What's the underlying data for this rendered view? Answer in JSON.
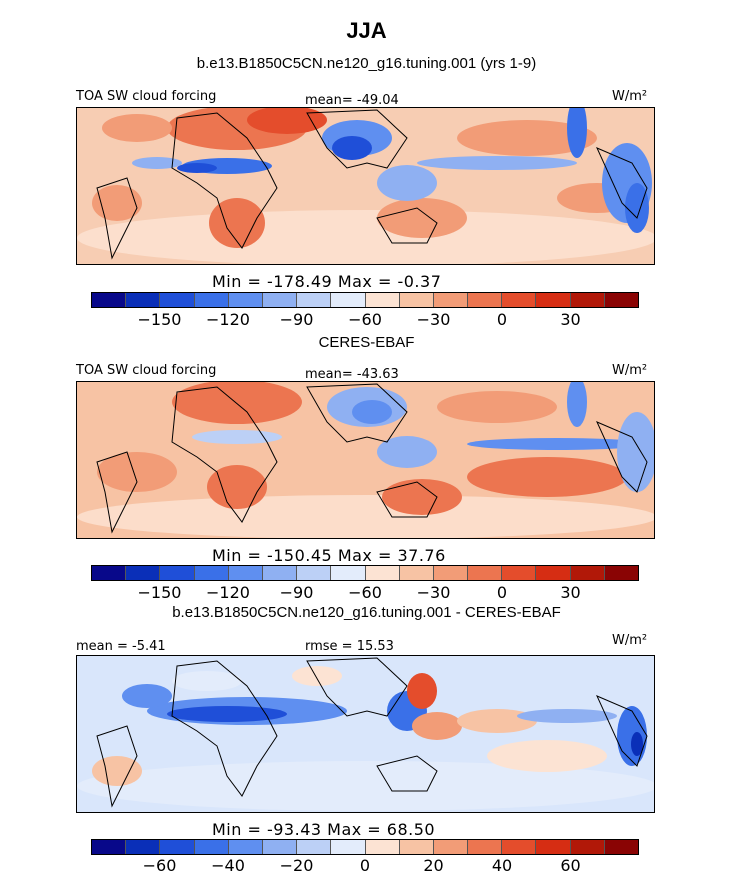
{
  "title": "JJA",
  "chart_data": [
    {
      "type": "heatmap",
      "panel_title": "b.e13.B1850C5CN.ne120_g16.tuning.001 (yrs 1-9)",
      "variable_label": "TOA SW cloud forcing",
      "mean_text": "mean= -49.04",
      "units": "W/m²",
      "min_max_text": "Min = -178.49 Max = -0.37",
      "min": -178.49,
      "max": -0.37,
      "mean": -49.04,
      "colorbar_ticks": [
        "-150",
        "-120",
        "-90",
        "-60",
        "-30",
        "0",
        "30"
      ],
      "colorbar_levels": [
        -165,
        -150,
        -135,
        -120,
        -105,
        -90,
        -75,
        -60,
        -45,
        -30,
        -15,
        0,
        15,
        30,
        45
      ]
    },
    {
      "type": "heatmap",
      "panel_title": "CERES-EBAF",
      "variable_label": "TOA SW cloud forcing",
      "mean_text": "mean= -43.63",
      "units": "W/m²",
      "min_max_text": "Min = -150.45 Max = 37.76",
      "min": -150.45,
      "max": 37.76,
      "mean": -43.63,
      "colorbar_ticks": [
        "-150",
        "-120",
        "-90",
        "-60",
        "-30",
        "0",
        "30"
      ],
      "colorbar_levels": [
        -165,
        -150,
        -135,
        -120,
        -105,
        -90,
        -75,
        -60,
        -45,
        -30,
        -15,
        0,
        15,
        30,
        45
      ]
    },
    {
      "type": "heatmap",
      "panel_title": "b.e13.B1850C5CN.ne120_g16.tuning.001 - CERES-EBAF",
      "mean_text": "mean = -5.41",
      "rmse_text": "rmse = 15.53",
      "units": "W/m²",
      "min_max_text": "Min = -93.43 Max = 68.50",
      "min": -93.43,
      "max": 68.5,
      "mean": -5.41,
      "rmse": 15.53,
      "colorbar_ticks": [
        "-60",
        "-40",
        "-20",
        "0",
        "20",
        "40",
        "60"
      ],
      "colorbar_levels": [
        -70,
        -60,
        -50,
        -40,
        -30,
        -20,
        -10,
        0,
        10,
        20,
        30,
        40,
        50,
        60,
        70
      ]
    }
  ],
  "colors": {
    "palette16": [
      "#08088a",
      "#0a2fb8",
      "#1f4fd8",
      "#3a70e8",
      "#5f8ff0",
      "#8fb0f2",
      "#bcd0f6",
      "#e3ecfb",
      "#fce3d3",
      "#f7c3a4",
      "#f29c77",
      "#ec7550",
      "#e44d2c",
      "#d62d13",
      "#b11808",
      "#8a0404"
    ],
    "ocean_bg": "#f7cdb3",
    "diff_bg": "#d9e6fb"
  }
}
